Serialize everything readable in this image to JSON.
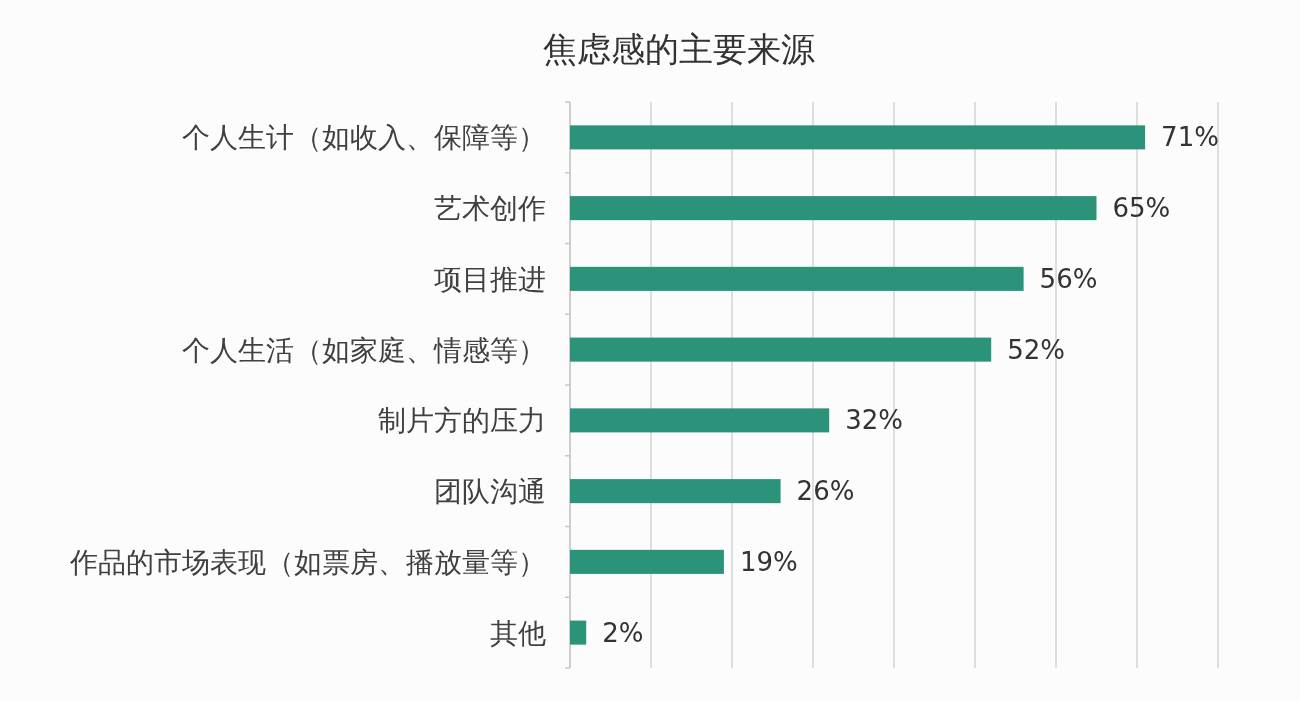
{
  "chart_data": {
    "type": "bar",
    "orientation": "horizontal",
    "title": "焦虑感的主要来源",
    "categories": [
      "个人生计（如收入、保障等）",
      "艺术创作",
      "项目推进",
      "个人生活（如家庭、情感等）",
      "制片方的压力",
      "团队沟通",
      "作品的市场表现（如票房、播放量等）",
      "其他"
    ],
    "values": [
      71,
      65,
      56,
      52,
      32,
      26,
      19,
      2
    ],
    "value_labels": [
      "71%",
      "65%",
      "56%",
      "52%",
      "32%",
      "26%",
      "19%",
      "2%"
    ],
    "color": "#2a937a",
    "xlim": [
      0,
      80
    ],
    "xticks": [
      {
        "value": 0,
        "label": null
      },
      {
        "value": 10,
        "label": null
      },
      {
        "value": 20,
        "label": null
      },
      {
        "value": 30,
        "label": null
      },
      {
        "value": 40,
        "label": null
      },
      {
        "value": 50,
        "label": null
      },
      {
        "value": 60,
        "label": null
      },
      {
        "value": 70,
        "label": null
      },
      {
        "value": 80,
        "label": null
      }
    ],
    "grid": "x",
    "tick_labels": "y"
  }
}
